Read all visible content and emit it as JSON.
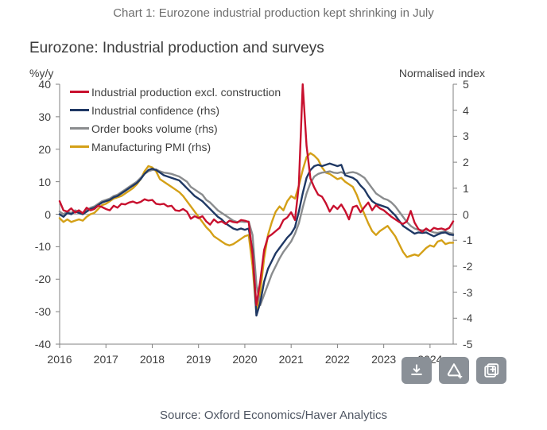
{
  "header": {
    "title": "Chart 1: Eurozone industrial production kept shrinking in July"
  },
  "chart": {
    "title": "Eurozone: Industrial production and surveys",
    "left_unit": "%y/y",
    "right_unit": "Normalised index",
    "source": "Source: Oxford Economics/Haver Analytics"
  },
  "toolbar": {
    "buttons": [
      "download",
      "create-alert",
      "add-to-collection"
    ]
  },
  "chart_data": {
    "type": "line",
    "title": "Eurozone: Industrial production and surveys",
    "x_frequency": "monthly",
    "x_start": "2016-01",
    "x_end": "2024-07",
    "x_tick_labels": [
      "2016",
      "2017",
      "2018",
      "2019",
      "2020",
      "2021",
      "2022",
      "2023",
      "2024"
    ],
    "left_axis": {
      "label": "%y/y",
      "min": -40,
      "max": 40,
      "ticks": [
        40,
        30,
        20,
        10,
        0,
        -10,
        -20,
        -30,
        -40
      ]
    },
    "right_axis": {
      "label": "Normalised index",
      "min": -5,
      "max": 5,
      "ticks": [
        5,
        4,
        3,
        2,
        1,
        0,
        -1,
        -2,
        -3,
        -4,
        -5
      ]
    },
    "zero_line": true,
    "grid": "off",
    "legend_position": "top-left",
    "series": [
      {
        "name": "Industrial production excl. construction",
        "axis": "left",
        "color": "#C8102E",
        "values": [
          4.0,
          1.2,
          0.8,
          1.8,
          0.5,
          1.2,
          0.3,
          2.0,
          1.2,
          1.6,
          2.6,
          2.2,
          1.6,
          1.2,
          2.6,
          2.0,
          3.2,
          3.0,
          3.6,
          3.9,
          3.4,
          3.8,
          4.6,
          4.2,
          4.4,
          3.2,
          3.0,
          3.2,
          2.4,
          2.6,
          1.2,
          1.0,
          1.6,
          0.8,
          -1.4,
          -0.6,
          -1.2,
          -0.6,
          -2.2,
          -3.2,
          -1.6,
          -2.6,
          -2.2,
          -3.0,
          -2.0,
          -2.4,
          -2.6,
          -1.8,
          -2.0,
          -2.4,
          -12.5,
          -28.0,
          -20.5,
          -11.0,
          -7.0,
          -6.2,
          -5.2,
          -4.2,
          -1.8,
          -1.0,
          0.6,
          -1.8,
          9.0,
          40.0,
          21.0,
          11.0,
          8.2,
          6.0,
          5.4,
          3.4,
          0.8,
          2.6,
          1.6,
          3.0,
          1.0,
          -1.6,
          2.2,
          2.6,
          0.6,
          2.2,
          3.6,
          1.2,
          2.8,
          1.8,
          1.2,
          0.2,
          -0.8,
          -1.6,
          -2.4,
          -3.0,
          -2.2,
          1.0,
          -2.6,
          -4.6,
          -5.4,
          -4.4,
          -5.2,
          -4.2,
          -4.6,
          -4.4,
          -4.8,
          -4.2,
          -2.2
        ]
      },
      {
        "name": "Industrial confidence (rhs)",
        "axis": "right",
        "color": "#1F3864",
        "values": [
          0.0,
          -0.1,
          0.05,
          0.0,
          0.1,
          0.05,
          0.0,
          0.1,
          0.2,
          0.25,
          0.35,
          0.45,
          0.5,
          0.55,
          0.65,
          0.7,
          0.8,
          0.9,
          1.0,
          1.1,
          1.2,
          1.35,
          1.55,
          1.7,
          1.75,
          1.7,
          1.6,
          1.5,
          1.45,
          1.4,
          1.35,
          1.3,
          1.15,
          1.0,
          0.85,
          0.7,
          0.6,
          0.5,
          0.35,
          0.2,
          0.05,
          -0.1,
          -0.2,
          -0.35,
          -0.45,
          -0.55,
          -0.6,
          -0.55,
          -0.6,
          -0.55,
          -1.4,
          -3.9,
          -3.4,
          -2.6,
          -2.1,
          -1.8,
          -1.5,
          -1.3,
          -1.1,
          -0.9,
          -0.75,
          -0.5,
          0.1,
          0.8,
          1.4,
          1.7,
          1.85,
          1.9,
          1.85,
          1.9,
          1.95,
          1.9,
          1.85,
          1.9,
          1.5,
          1.45,
          1.4,
          1.3,
          1.1,
          0.95,
          0.7,
          0.5,
          0.4,
          0.35,
          0.3,
          0.25,
          0.1,
          -0.05,
          -0.25,
          -0.45,
          -0.55,
          -0.65,
          -0.75,
          -0.7,
          -0.72,
          -0.7,
          -0.78,
          -0.85,
          -0.78,
          -0.72,
          -0.7,
          -0.78,
          -0.8
        ]
      },
      {
        "name": "Order books volume (rhs)",
        "axis": "right",
        "color": "#8A8C8E",
        "values": [
          0.1,
          0.0,
          0.1,
          0.05,
          0.15,
          0.1,
          0.05,
          0.15,
          0.25,
          0.3,
          0.4,
          0.5,
          0.55,
          0.6,
          0.7,
          0.75,
          0.85,
          0.95,
          1.05,
          1.15,
          1.25,
          1.4,
          1.55,
          1.65,
          1.7,
          1.72,
          1.65,
          1.6,
          1.58,
          1.55,
          1.5,
          1.45,
          1.35,
          1.25,
          1.05,
          0.95,
          0.85,
          0.75,
          0.55,
          0.45,
          0.3,
          0.15,
          0.05,
          -0.05,
          -0.15,
          -0.25,
          -0.3,
          -0.28,
          -0.3,
          -0.28,
          -0.8,
          -2.7,
          -3.5,
          -3.1,
          -2.7,
          -2.3,
          -2.0,
          -1.7,
          -1.45,
          -1.25,
          -1.05,
          -0.75,
          -0.35,
          0.25,
          0.8,
          1.2,
          1.45,
          1.55,
          1.6,
          1.62,
          1.65,
          1.6,
          1.58,
          1.62,
          1.55,
          1.6,
          1.62,
          1.58,
          1.5,
          1.4,
          1.2,
          1.0,
          0.8,
          0.7,
          0.6,
          0.55,
          0.45,
          0.3,
          0.1,
          -0.1,
          -0.3,
          -0.45,
          -0.55,
          -0.6,
          -0.62,
          -0.6,
          -0.65,
          -0.7,
          -0.72,
          -0.68,
          -0.66,
          -0.72,
          -0.75
        ]
      },
      {
        "name": "Manufacturing PMI (rhs)",
        "axis": "right",
        "color": "#D4A017",
        "values": [
          -0.15,
          -0.3,
          -0.2,
          -0.3,
          -0.25,
          -0.2,
          -0.25,
          -0.1,
          0.0,
          0.05,
          0.2,
          0.35,
          0.4,
          0.5,
          0.6,
          0.65,
          0.7,
          0.8,
          0.9,
          1.0,
          1.15,
          1.35,
          1.65,
          1.85,
          1.8,
          1.65,
          1.35,
          1.25,
          1.15,
          1.05,
          0.95,
          0.85,
          0.7,
          0.5,
          0.3,
          0.1,
          -0.1,
          -0.3,
          -0.5,
          -0.65,
          -0.85,
          -0.95,
          -1.05,
          -1.15,
          -1.2,
          -1.15,
          -1.05,
          -0.95,
          -0.85,
          -0.8,
          -2.0,
          -3.8,
          -3.0,
          -1.7,
          -0.8,
          -0.3,
          0.1,
          0.3,
          0.15,
          0.5,
          0.7,
          0.6,
          1.1,
          1.7,
          2.2,
          2.35,
          2.25,
          2.1,
          1.8,
          1.6,
          1.55,
          1.45,
          1.35,
          1.4,
          1.25,
          1.15,
          1.05,
          0.75,
          0.35,
          0.0,
          -0.35,
          -0.65,
          -0.8,
          -0.65,
          -0.55,
          -0.45,
          -0.65,
          -0.85,
          -1.15,
          -1.45,
          -1.65,
          -1.6,
          -1.55,
          -1.6,
          -1.45,
          -1.3,
          -1.2,
          -1.25,
          -1.05,
          -1.0,
          -1.15,
          -1.1,
          -1.1
        ]
      }
    ]
  }
}
